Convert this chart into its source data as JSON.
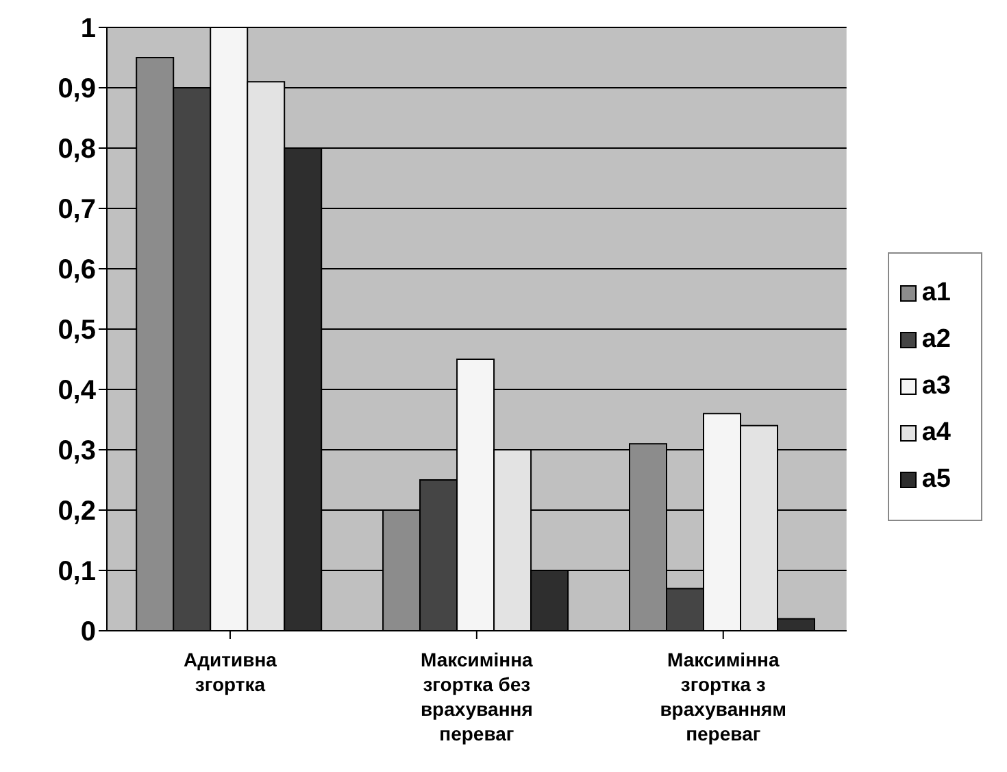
{
  "chart_data": {
    "type": "bar",
    "categories": [
      "Адитивна згортка",
      "Максимінна згортка без врахування переваг",
      "Максимінна згортка з врахуванням переваг"
    ],
    "series": [
      {
        "name": "a1",
        "color": "#8c8c8c",
        "values": [
          0.95,
          0.2,
          0.31
        ]
      },
      {
        "name": "a2",
        "color": "#454545",
        "values": [
          0.9,
          0.25,
          0.07
        ]
      },
      {
        "name": "a3",
        "color": "#f5f5f5",
        "values": [
          1.0,
          0.45,
          0.36
        ]
      },
      {
        "name": "a4",
        "color": "#e3e3e3",
        "values": [
          0.91,
          0.3,
          0.34
        ]
      },
      {
        "name": "a5",
        "color": "#2e2e2e",
        "values": [
          0.8,
          0.1,
          0.02
        ]
      }
    ],
    "ylim": [
      0,
      1
    ],
    "yticks": [
      0,
      {
        "value": 0.1,
        "label": "0,1"
      },
      {
        "value": 0.2,
        "label": "0,2"
      },
      {
        "value": 0.3,
        "label": "0,3"
      },
      {
        "value": 0.4,
        "label": "0,4"
      },
      {
        "value": 0.5,
        "label": "0,5"
      },
      {
        "value": 0.6,
        "label": "0,6"
      },
      {
        "value": 0.7,
        "label": "0,7"
      },
      {
        "value": 0.8,
        "label": "0,8"
      },
      {
        "value": 0.9,
        "label": "0,9"
      },
      1
    ],
    "grid": "y",
    "legend": "right"
  }
}
